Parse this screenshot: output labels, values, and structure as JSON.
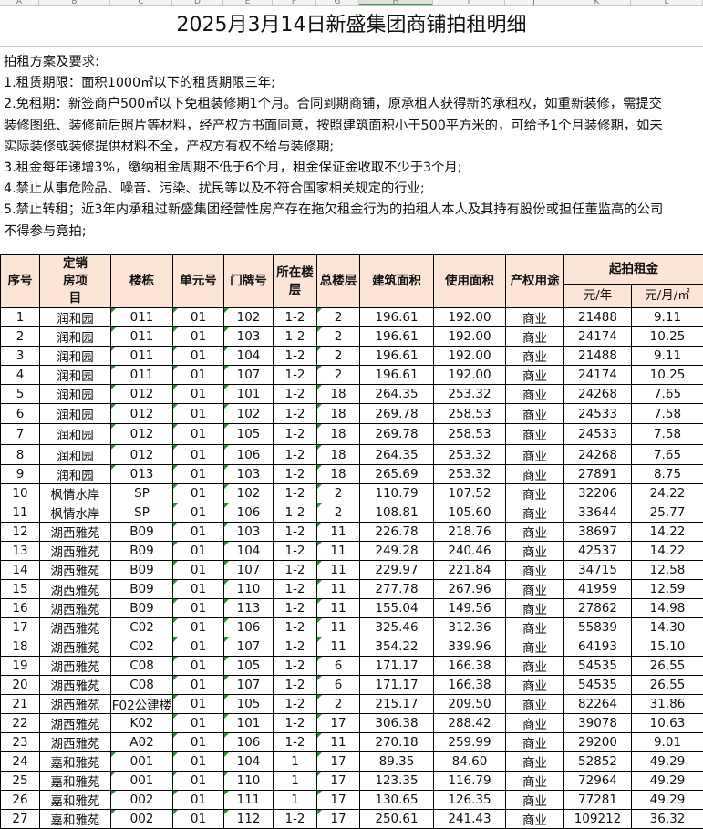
{
  "column_headers": [
    "A",
    "B",
    "C",
    "D",
    "E",
    "F",
    "G",
    "H",
    "I",
    "J",
    "K",
    "L"
  ],
  "selected_column": "H",
  "title": "2025月3月14日新盛集团商铺拍租明细",
  "rules": [
    "拍租方案及要求:",
    "1.租赁期限：面积1000㎡以下的租赁期限三年;",
    "2.免租期：新签商户500㎡以下免租装修期1个月。合同到期商铺，原承租人获得新的承租权，如重新装修，需提交",
    "装修图纸、装修前后照片等材料，经产权方书面同意，按照建筑面积小于500平方米的，可给予1个月装修期，如未",
    "实际装修或装修提供材料不全，产权方有权不给与装修期;",
    "3.租金每年递增3%，缴纳租金周期不低于6个月，租金保证金收取不少于3个月;",
    "4.禁止从事危险品、噪音、污染、扰民等以及不符合国家相关规定的行业;",
    "5.禁止转租；近3年内承租过新盛集团经营性房产存在拖欠租金行为的拍租人本人及其持有股份或担任董监高的公司",
    "不得参与竞拍;"
  ],
  "table": {
    "headers": {
      "seq": "序号",
      "project": "定销房项目",
      "building": "楼栋",
      "unit": "单元号",
      "door": "门牌号",
      "floor": "所在楼层",
      "total_floors": "总楼层",
      "gross_area": "建筑面积",
      "usable_area": "使用面积",
      "usage": "产权用途",
      "rent": "起拍租金",
      "rent_year": "元/年",
      "rent_month_sqm": "元/月/㎡"
    },
    "rows": [
      [
        "1",
        "润和园",
        "011",
        "01",
        "102",
        "1-2",
        "2",
        "196.61",
        "192.00",
        "商业",
        "21488",
        "9.11"
      ],
      [
        "2",
        "润和园",
        "011",
        "01",
        "103",
        "1-2",
        "2",
        "196.61",
        "192.00",
        "商业",
        "24174",
        "10.25"
      ],
      [
        "3",
        "润和园",
        "011",
        "01",
        "104",
        "1-2",
        "2",
        "196.61",
        "192.00",
        "商业",
        "21488",
        "9.11"
      ],
      [
        "4",
        "润和园",
        "011",
        "01",
        "107",
        "1-2",
        "2",
        "196.61",
        "192.00",
        "商业",
        "24174",
        "10.25"
      ],
      [
        "5",
        "润和园",
        "012",
        "01",
        "101",
        "1-2",
        "18",
        "264.35",
        "253.32",
        "商业",
        "24268",
        "7.65"
      ],
      [
        "6",
        "润和园",
        "012",
        "01",
        "102",
        "1-2",
        "18",
        "269.78",
        "258.53",
        "商业",
        "24533",
        "7.58"
      ],
      [
        "7",
        "润和园",
        "012",
        "01",
        "105",
        "1-2",
        "18",
        "269.78",
        "258.53",
        "商业",
        "24533",
        "7.58"
      ],
      [
        "8",
        "润和园",
        "012",
        "01",
        "106",
        "1-2",
        "18",
        "264.35",
        "253.32",
        "商业",
        "24268",
        "7.65"
      ],
      [
        "9",
        "润和园",
        "013",
        "01",
        "103",
        "1-2",
        "18",
        "265.69",
        "253.32",
        "商业",
        "27891",
        "8.75"
      ],
      [
        "10",
        "枫情水岸",
        "SP",
        "01",
        "102",
        "1-2",
        "2",
        "110.79",
        "107.52",
        "商业",
        "32206",
        "24.22"
      ],
      [
        "11",
        "枫情水岸",
        "SP",
        "01",
        "106",
        "1-2",
        "2",
        "108.81",
        "105.60",
        "商业",
        "33644",
        "25.77"
      ],
      [
        "12",
        "湖西雅苑",
        "B09",
        "01",
        "103",
        "1-2",
        "11",
        "226.78",
        "218.76",
        "商业",
        "38697",
        "14.22"
      ],
      [
        "13",
        "湖西雅苑",
        "B09",
        "01",
        "104",
        "1-2",
        "11",
        "249.28",
        "240.46",
        "商业",
        "42537",
        "14.22"
      ],
      [
        "14",
        "湖西雅苑",
        "B09",
        "01",
        "107",
        "1-2",
        "11",
        "229.97",
        "221.84",
        "商业",
        "34715",
        "12.58"
      ],
      [
        "15",
        "湖西雅苑",
        "B09",
        "01",
        "110",
        "1-2",
        "11",
        "277.78",
        "267.96",
        "商业",
        "41959",
        "12.59"
      ],
      [
        "16",
        "湖西雅苑",
        "B09",
        "01",
        "113",
        "1-2",
        "11",
        "155.04",
        "149.56",
        "商业",
        "27862",
        "14.98"
      ],
      [
        "17",
        "湖西雅苑",
        "C02",
        "01",
        "106",
        "1-2",
        "11",
        "325.46",
        "312.36",
        "商业",
        "55839",
        "14.30"
      ],
      [
        "18",
        "湖西雅苑",
        "C02",
        "01",
        "107",
        "1-2",
        "11",
        "354.22",
        "339.96",
        "商业",
        "64193",
        "15.10"
      ],
      [
        "19",
        "湖西雅苑",
        "C08",
        "01",
        "105",
        "1-2",
        "6",
        "171.17",
        "166.38",
        "商业",
        "54535",
        "26.55"
      ],
      [
        "20",
        "湖西雅苑",
        "C08",
        "01",
        "107",
        "1-2",
        "6",
        "171.17",
        "166.38",
        "商业",
        "54535",
        "26.55"
      ],
      [
        "21",
        "湖西雅苑",
        "F02公建楼",
        "01",
        "105",
        "1-2",
        "2",
        "215.17",
        "209.50",
        "商业",
        "82264",
        "31.86"
      ],
      [
        "22",
        "湖西雅苑",
        "K02",
        "01",
        "101",
        "1-2",
        "17",
        "306.38",
        "288.42",
        "商业",
        "39078",
        "10.63"
      ],
      [
        "23",
        "湖西雅苑",
        "A02",
        "01",
        "106",
        "1-2",
        "11",
        "270.18",
        "259.99",
        "商业",
        "29200",
        "9.01"
      ],
      [
        "24",
        "嘉和雅苑",
        "001",
        "01",
        "104",
        "1",
        "17",
        "89.35",
        "84.60",
        "商业",
        "52852",
        "49.29"
      ],
      [
        "25",
        "嘉和雅苑",
        "001",
        "01",
        "110",
        "1",
        "17",
        "123.35",
        "116.79",
        "商业",
        "72964",
        "49.29"
      ],
      [
        "26",
        "嘉和雅苑",
        "002",
        "01",
        "111",
        "1",
        "17",
        "130.65",
        "126.35",
        "商业",
        "77281",
        "49.29"
      ],
      [
        "27",
        "嘉和雅苑",
        "002",
        "01",
        "112",
        "1-2",
        "17",
        "250.61",
        "241.43",
        "商业",
        "109212",
        "36.32"
      ]
    ]
  },
  "colors": {
    "header_bg": "#fce4d6",
    "number_as_text_marker": "#2e8b2e",
    "selected_column": "#3d9b35"
  }
}
